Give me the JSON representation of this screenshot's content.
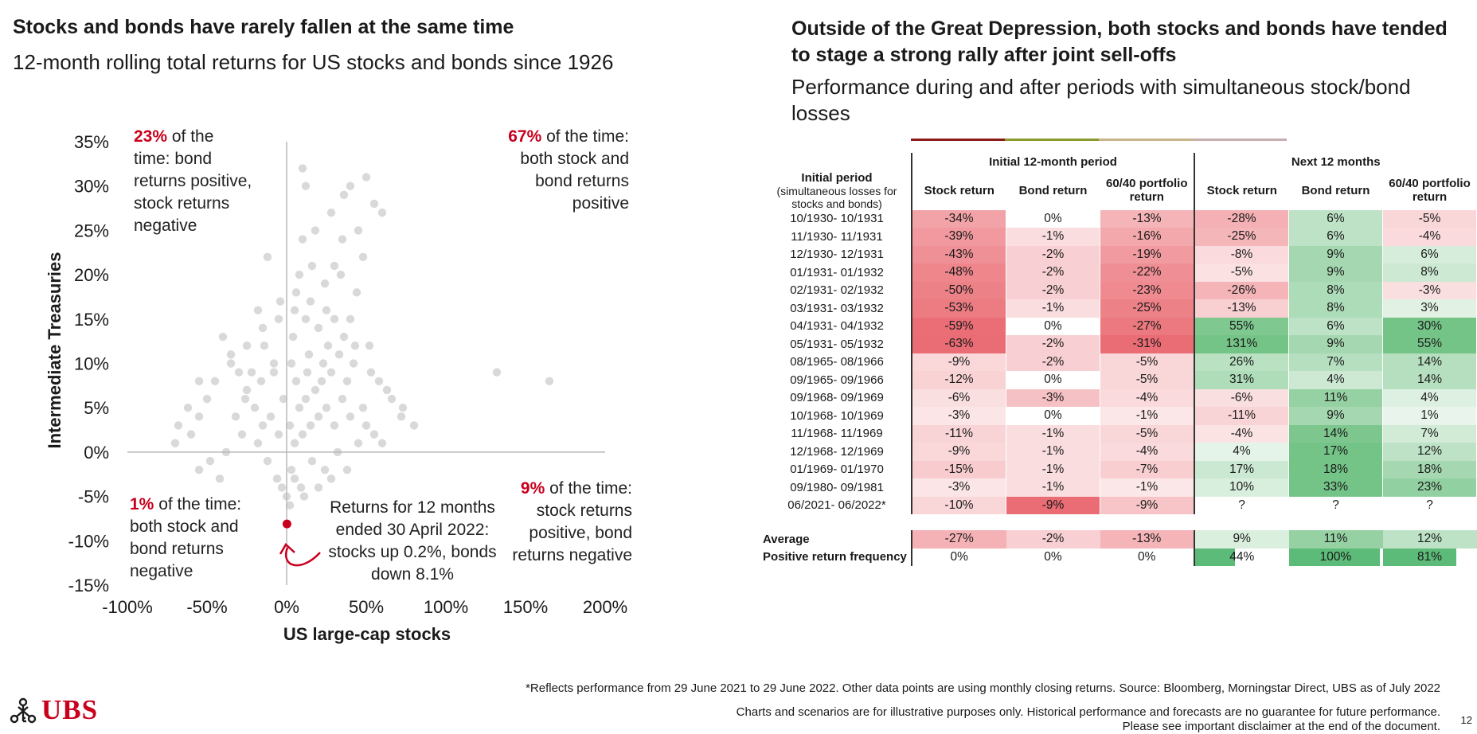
{
  "left": {
    "title": "Stocks and bonds have rarely fallen at the same time",
    "subtitle": "12-month rolling total returns for US stocks and bonds since 1926"
  },
  "right": {
    "title": "Outside of the Great Depression, both stocks and bonds have tended to stage a strong rally after joint sell-offs",
    "subtitle": "Performance during and after periods with simultaneous stock/bond losses"
  },
  "annotations": {
    "q2_pct": "23%",
    "q2_text_1": " of the",
    "q2_text_2": "time: bond",
    "q2_text_3": "returns positive,",
    "q2_text_4": "stock returns",
    "q2_text_5": "negative",
    "q1_pct": "67%",
    "q1_text_1": " of the time:",
    "q1_text_2": "both stock and",
    "q1_text_3": "bond returns",
    "q1_text_4": "positive",
    "q3_pct": "1%",
    "q3_text_1": " of the time:",
    "q3_text_2": "both stock and",
    "q3_text_3": "bond returns",
    "q3_text_4": "negative",
    "q4_pct": "9%",
    "q4_text_1": " of the time:",
    "q4_text_2": "stock returns",
    "q4_text_3": "positive, bond",
    "q4_text_4": "returns negative",
    "latest_1": "Returns for 12 months",
    "latest_2": "ended 30 April 2022:",
    "latest_3": "stocks up 0.2%, bonds",
    "latest_4": "down 8.1%"
  },
  "chart_data": [
    {
      "type": "scatter",
      "title": "Stocks and bonds have rarely fallen at the same time",
      "subtitle": "12-month rolling total returns for US stocks and bonds since 1926",
      "xlabel": "US large-cap stocks",
      "ylabel": "Intermediate Treasuries",
      "xlim": [
        -100,
        200
      ],
      "ylim": [
        -15,
        35
      ],
      "xticks": [
        "-100%",
        "-50%",
        "0%",
        "50%",
        "100%",
        "150%",
        "200%"
      ],
      "yticks": [
        "35%",
        "30%",
        "25%",
        "20%",
        "15%",
        "10%",
        "5%",
        "0%",
        "-5%",
        "-10%",
        "-15%"
      ],
      "grid": false,
      "point_color": "#d0d0d0",
      "highlight_color": "#c8001e",
      "highlight": {
        "x": 0.2,
        "y": -8.1
      },
      "points": [
        [
          10,
          2
        ],
        [
          15,
          3
        ],
        [
          20,
          4
        ],
        [
          5,
          1
        ],
        [
          25,
          5
        ],
        [
          30,
          3
        ],
        [
          -5,
          2
        ],
        [
          -10,
          4
        ],
        [
          12,
          6
        ],
        [
          18,
          7
        ],
        [
          22,
          8
        ],
        [
          8,
          5
        ],
        [
          2,
          3
        ],
        [
          35,
          6
        ],
        [
          40,
          4
        ],
        [
          28,
          9
        ],
        [
          14,
          11
        ],
        [
          6,
          8
        ],
        [
          -2,
          6
        ],
        [
          -15,
          3
        ],
        [
          -20,
          5
        ],
        [
          -25,
          7
        ],
        [
          -30,
          9
        ],
        [
          -35,
          11
        ],
        [
          -40,
          13
        ],
        [
          -28,
          2
        ],
        [
          -18,
          1
        ],
        [
          -12,
          -1
        ],
        [
          -6,
          -3
        ],
        [
          3,
          -2
        ],
        [
          9,
          -4
        ],
        [
          16,
          -1
        ],
        [
          24,
          -2
        ],
        [
          32,
          0
        ],
        [
          45,
          1
        ],
        [
          50,
          3
        ],
        [
          55,
          2
        ],
        [
          60,
          1
        ],
        [
          48,
          5
        ],
        [
          38,
          8
        ],
        [
          26,
          12
        ],
        [
          20,
          14
        ],
        [
          12,
          15
        ],
        [
          4,
          13
        ],
        [
          -8,
          10
        ],
        [
          -14,
          12
        ],
        [
          -22,
          9
        ],
        [
          30,
          15
        ],
        [
          36,
          13
        ],
        [
          42,
          10
        ],
        [
          44,
          18
        ],
        [
          34,
          20
        ],
        [
          24,
          19
        ],
        [
          16,
          21
        ],
        [
          6,
          18
        ],
        [
          -4,
          17
        ],
        [
          10,
          24
        ],
        [
          18,
          25
        ],
        [
          28,
          27
        ],
        [
          36,
          29
        ],
        [
          -15,
          14
        ],
        [
          -5,
          15
        ],
        [
          5,
          16
        ],
        [
          15,
          17
        ],
        [
          25,
          16
        ],
        [
          40,
          15
        ],
        [
          52,
          12
        ],
        [
          58,
          8
        ],
        [
          66,
          6
        ],
        [
          72,
          4
        ],
        [
          80,
          3
        ],
        [
          -45,
          8
        ],
        [
          -50,
          6
        ],
        [
          -55,
          4
        ],
        [
          -60,
          2
        ],
        [
          -70,
          1
        ],
        [
          -38,
          0
        ],
        [
          -48,
          -1
        ],
        [
          -55,
          -2
        ],
        [
          -42,
          -3
        ],
        [
          0,
          -5
        ],
        [
          2,
          -6
        ],
        [
          5,
          -3
        ],
        [
          -3,
          -4
        ],
        [
          11,
          -5
        ],
        [
          20,
          -4
        ],
        [
          28,
          -3
        ],
        [
          38,
          -2
        ],
        [
          -32,
          4
        ],
        [
          -26,
          6
        ],
        [
          -16,
          8
        ],
        [
          -8,
          9
        ],
        [
          3,
          10
        ],
        [
          13,
          9
        ],
        [
          23,
          10
        ],
        [
          33,
          11
        ],
        [
          43,
          12
        ],
        [
          53,
          9
        ],
        [
          63,
          7
        ],
        [
          73,
          5
        ],
        [
          35,
          24
        ],
        [
          45,
          25
        ],
        [
          40,
          30
        ],
        [
          50,
          31
        ],
        [
          55,
          28
        ],
        [
          60,
          27
        ],
        [
          10,
          32
        ],
        [
          12,
          30
        ],
        [
          -12,
          22
        ],
        [
          -35,
          10
        ],
        [
          -25,
          12
        ],
        [
          -18,
          16
        ],
        [
          8,
          20
        ],
        [
          30,
          21
        ],
        [
          48,
          22
        ],
        [
          132,
          9
        ],
        [
          165,
          8
        ],
        [
          -55,
          8
        ],
        [
          -62,
          5
        ],
        [
          -68,
          3
        ]
      ]
    },
    {
      "type": "table",
      "title": "Outside of the Great Depression, both stocks and bonds have tended to stage a strong rally after joint sell-offs",
      "group_headers": [
        "Initial 12-month period",
        "Next 12 months"
      ],
      "row_header": "Initial period",
      "row_header_sub": "(simultaneous losses for stocks and bonds)",
      "columns": [
        "Stock return",
        "Bond return",
        "60/40 portfolio return",
        "Stock return",
        "Bond return",
        "60/40 portfolio return"
      ],
      "rows": [
        {
          "period": "10/1930- 10/1931",
          "values": [
            "-34%",
            "0%",
            "-13%",
            "-28%",
            "6%",
            "-5%"
          ],
          "nums": [
            -34,
            0,
            -13,
            -28,
            6,
            -5
          ]
        },
        {
          "period": "11/1930- 11/1931",
          "values": [
            "-39%",
            "-1%",
            "-16%",
            "-25%",
            "6%",
            "-4%"
          ],
          "nums": [
            -39,
            -1,
            -16,
            -25,
            6,
            -4
          ]
        },
        {
          "period": "12/1930- 12/1931",
          "values": [
            "-43%",
            "-2%",
            "-19%",
            "-8%",
            "9%",
            "6%"
          ],
          "nums": [
            -43,
            -2,
            -19,
            -8,
            9,
            6
          ]
        },
        {
          "period": "01/1931- 01/1932",
          "values": [
            "-48%",
            "-2%",
            "-22%",
            "-5%",
            "9%",
            "8%"
          ],
          "nums": [
            -48,
            -2,
            -22,
            -5,
            9,
            8
          ]
        },
        {
          "period": "02/1931- 02/1932",
          "values": [
            "-50%",
            "-2%",
            "-23%",
            "-26%",
            "8%",
            "-3%"
          ],
          "nums": [
            -50,
            -2,
            -23,
            -26,
            8,
            -3
          ]
        },
        {
          "period": "03/1931- 03/1932",
          "values": [
            "-53%",
            "-1%",
            "-25%",
            "-13%",
            "8%",
            "3%"
          ],
          "nums": [
            -53,
            -1,
            -25,
            -13,
            8,
            3
          ]
        },
        {
          "period": "04/1931- 04/1932",
          "values": [
            "-59%",
            "0%",
            "-27%",
            "55%",
            "6%",
            "30%"
          ],
          "nums": [
            -59,
            0,
            -27,
            55,
            6,
            30
          ]
        },
        {
          "period": "05/1931- 05/1932",
          "values": [
            "-63%",
            "-2%",
            "-31%",
            "131%",
            "9%",
            "55%"
          ],
          "nums": [
            -63,
            -2,
            -31,
            131,
            9,
            55
          ]
        },
        {
          "period": "08/1965- 08/1966",
          "values": [
            "-9%",
            "-2%",
            "-5%",
            "26%",
            "7%",
            "14%"
          ],
          "nums": [
            -9,
            -2,
            -5,
            26,
            7,
            14
          ]
        },
        {
          "period": "09/1965- 09/1966",
          "values": [
            "-12%",
            "0%",
            "-5%",
            "31%",
            "4%",
            "14%"
          ],
          "nums": [
            -12,
            0,
            -5,
            31,
            4,
            14
          ]
        },
        {
          "period": "09/1968- 09/1969",
          "values": [
            "-6%",
            "-3%",
            "-4%",
            "-6%",
            "11%",
            "4%"
          ],
          "nums": [
            -6,
            -3,
            -4,
            -6,
            11,
            4
          ]
        },
        {
          "period": "10/1968- 10/1969",
          "values": [
            "-3%",
            "0%",
            "-1%",
            "-11%",
            "9%",
            "1%"
          ],
          "nums": [
            -3,
            0,
            -1,
            -11,
            9,
            1
          ]
        },
        {
          "period": "11/1968- 11/1969",
          "values": [
            "-11%",
            "-1%",
            "-5%",
            "-4%",
            "14%",
            "7%"
          ],
          "nums": [
            -11,
            -1,
            -5,
            -4,
            14,
            7
          ]
        },
        {
          "period": "12/1968- 12/1969",
          "values": [
            "-9%",
            "-1%",
            "-4%",
            "4%",
            "17%",
            "12%"
          ],
          "nums": [
            -9,
            -1,
            -4,
            4,
            17,
            12
          ]
        },
        {
          "period": "01/1969- 01/1970",
          "values": [
            "-15%",
            "-1%",
            "-7%",
            "17%",
            "18%",
            "18%"
          ],
          "nums": [
            -15,
            -1,
            -7,
            17,
            18,
            18
          ]
        },
        {
          "period": "09/1980- 09/1981",
          "values": [
            "-3%",
            "-1%",
            "-1%",
            "10%",
            "33%",
            "23%"
          ],
          "nums": [
            -3,
            -1,
            -1,
            10,
            33,
            23
          ]
        },
        {
          "period": "06/2021- 06/2022*",
          "values": [
            "-10%",
            "-9%",
            "-9%",
            "?",
            "?",
            "?"
          ],
          "nums": [
            -10,
            -9,
            -9,
            null,
            null,
            null
          ]
        }
      ],
      "average": {
        "label": "Average",
        "values": [
          "-27%",
          "-2%",
          "-13%",
          "9%",
          "11%",
          "12%"
        ],
        "nums": [
          -27,
          -2,
          -13,
          9,
          11,
          12
        ]
      },
      "frequency": {
        "label": "Positive return frequency",
        "values": [
          "0%",
          "0%",
          "0%",
          "44%",
          "100%",
          "81%"
        ],
        "nums": [
          0,
          0,
          0,
          44,
          100,
          81
        ]
      }
    }
  ],
  "footer": {
    "footnote": "*Reflects performance from 29 June 2021 to 29 June 2022. Other data points are using monthly closing returns. Source: Bloomberg, Morningstar Direct, UBS as of July 2022",
    "disclaimer_1": "Charts and scenarios are for illustrative purposes only. Historical performance and forecasts are no guarantee for future performance.",
    "disclaimer_2": "Please see important disclaimer at the end of the document.",
    "page_number": "12",
    "logo_text": "UBS"
  }
}
